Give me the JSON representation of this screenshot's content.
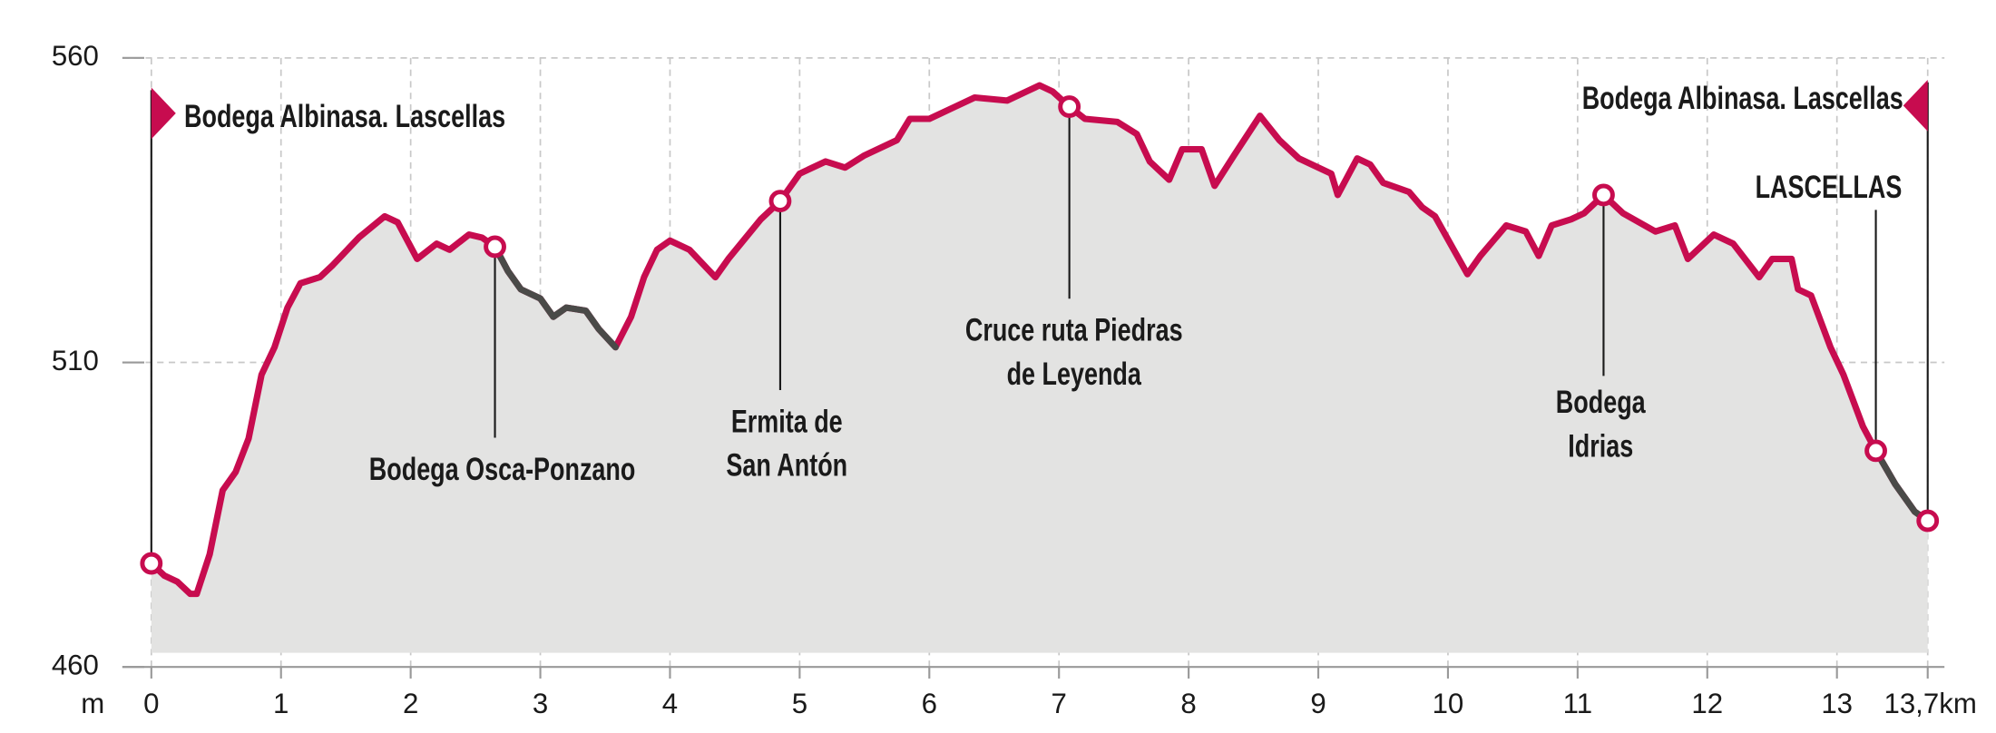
{
  "chart_data": {
    "type": "area",
    "x": [
      0,
      0.1,
      0.2,
      0.3,
      0.35,
      0.45,
      0.55,
      0.65,
      0.75,
      0.85,
      0.95,
      1.05,
      1.15,
      1.3,
      1.4,
      1.6,
      1.8,
      1.9,
      2.05,
      2.2,
      2.3,
      2.45,
      2.55,
      2.65,
      2.75,
      2.85,
      3.0,
      3.1,
      3.2,
      3.35,
      3.45,
      3.58,
      3.7,
      3.8,
      3.9,
      4.0,
      4.15,
      4.35,
      4.45,
      4.7,
      4.85,
      5.0,
      5.2,
      5.35,
      5.5,
      5.75,
      5.85,
      6.0,
      6.2,
      6.35,
      6.6,
      6.75,
      6.85,
      6.95,
      7.08,
      7.2,
      7.45,
      7.6,
      7.7,
      7.85,
      7.95,
      8.1,
      8.2,
      8.35,
      8.55,
      8.7,
      8.85,
      9.1,
      9.15,
      9.3,
      9.4,
      9.5,
      9.7,
      9.8,
      9.9,
      10.15,
      10.25,
      10.45,
      10.6,
      10.7,
      10.8,
      10.95,
      11.05,
      11.2,
      11.35,
      11.6,
      11.75,
      11.85,
      12.05,
      12.2,
      12.4,
      12.5,
      12.65,
      12.7,
      12.8,
      12.95,
      13.05,
      13.2,
      13.3,
      13.45,
      13.6,
      13.7
    ],
    "values": [
      477,
      475,
      474,
      472,
      472,
      478.5,
      489,
      492,
      497.5,
      508,
      512.5,
      519,
      523,
      524,
      526,
      530.5,
      534,
      533,
      527,
      529.5,
      528.5,
      531,
      530.5,
      529,
      525,
      522,
      520.5,
      517.5,
      519,
      518.5,
      515.5,
      512.5,
      517.5,
      524,
      528.5,
      530,
      528.5,
      524,
      527,
      533.5,
      536.5,
      541,
      543,
      542,
      544,
      546.5,
      550,
      550,
      552,
      553.5,
      553,
      554.5,
      555.5,
      554.5,
      552,
      550,
      549.5,
      547.5,
      543,
      540,
      545,
      545,
      539,
      544,
      550.5,
      546.5,
      543.5,
      541,
      537.5,
      543.5,
      542.5,
      539.5,
      538,
      535.5,
      534,
      524.5,
      527.5,
      532.5,
      531.5,
      527.5,
      532.5,
      533.5,
      534.5,
      537.5,
      534.5,
      531.5,
      532.5,
      527,
      531,
      529.5,
      524,
      527,
      527,
      522,
      521,
      512.5,
      508,
      499.5,
      495.5,
      490,
      485.5,
      484
    ],
    "color": "#c70c4f",
    "fill": "#e3e3e2",
    "segments": [
      {
        "color": "#4a4a48",
        "xrange": [
          2.65,
          3.58
        ]
      },
      {
        "color": "#4a4a48",
        "xrange": [
          13.3,
          13.7
        ]
      }
    ],
    "xlim": [
      0,
      13.7
    ],
    "ylim": [
      460,
      560
    ],
    "xticks": [
      0,
      1,
      2,
      3,
      4,
      5,
      6,
      7,
      8,
      9,
      10,
      11,
      12,
      13,
      {
        "value": 13.7,
        "label": "13,7km"
      }
    ],
    "yticks": [
      460,
      510,
      560
    ],
    "y_unit": "m",
    "grid": true,
    "waypoints": [
      {
        "x": 0,
        "label": [
          "Bodega Albinasa. Lascellas"
        ]
      },
      {
        "x": 2.65,
        "label": [
          "Bodega Osca-Ponzano"
        ]
      },
      {
        "x": 4.85,
        "label": [
          "Ermita de",
          "San Antón"
        ]
      },
      {
        "x": 7.08,
        "label": [
          "Cruce ruta Piedras",
          "de Leyenda"
        ]
      },
      {
        "x": 11.2,
        "label": [
          "Bodega",
          "Idrias"
        ]
      },
      {
        "x": 13.3,
        "label": [
          "LASCELLAS"
        ]
      },
      {
        "x": 13.7,
        "label": [
          "Bodega Albinasa. Lascellas"
        ]
      }
    ]
  }
}
